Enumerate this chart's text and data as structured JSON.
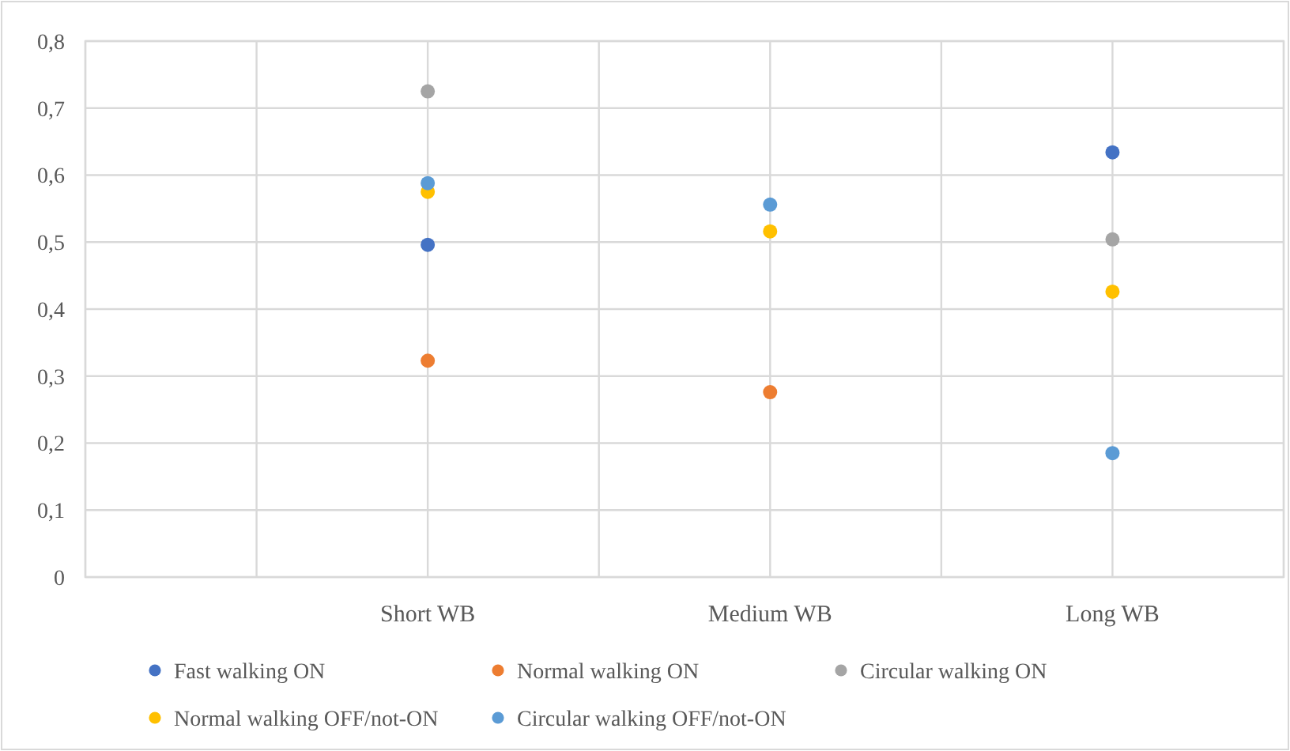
{
  "chart_data": {
    "type": "scatter",
    "categories": [
      null,
      null,
      "Short WB",
      null,
      "Medium WB",
      null,
      "Long WB",
      null
    ],
    "ylim": [
      0,
      0.8
    ],
    "yticks": [
      {
        "value": 0,
        "label": "0"
      },
      {
        "value": 0.1,
        "label": "0,1"
      },
      {
        "value": 0.2,
        "label": "0,2"
      },
      {
        "value": 0.3,
        "label": "0,3"
      },
      {
        "value": 0.4,
        "label": "0,4"
      },
      {
        "value": 0.5,
        "label": "0,5"
      },
      {
        "value": 0.6,
        "label": "0,6"
      },
      {
        "value": 0.7,
        "label": "0,7"
      },
      {
        "value": 0.8,
        "label": "0,8"
      }
    ],
    "grid": true,
    "legend": "bottom",
    "marker": "circle",
    "series": [
      {
        "name": "Fast walking ON",
        "color": "#4472c4",
        "values": [
          null,
          null,
          0.496,
          null,
          null,
          null,
          0.634,
          null
        ]
      },
      {
        "name": "Normal walking ON",
        "color": "#ed7d31",
        "values": [
          null,
          null,
          0.323,
          null,
          0.276,
          null,
          null,
          null
        ]
      },
      {
        "name": "Circular walking ON",
        "color": "#a5a5a5",
        "values": [
          null,
          null,
          0.725,
          null,
          null,
          null,
          0.504,
          null
        ]
      },
      {
        "name": "Normal walking OFF/not-ON",
        "color": "#ffc000",
        "values": [
          null,
          null,
          0.575,
          null,
          0.516,
          null,
          0.426,
          null
        ]
      },
      {
        "name": "Circular walking OFF/not-ON",
        "color": "#5b9bd5",
        "values": [
          null,
          null,
          0.588,
          null,
          0.556,
          null,
          0.185,
          null
        ]
      }
    ]
  }
}
